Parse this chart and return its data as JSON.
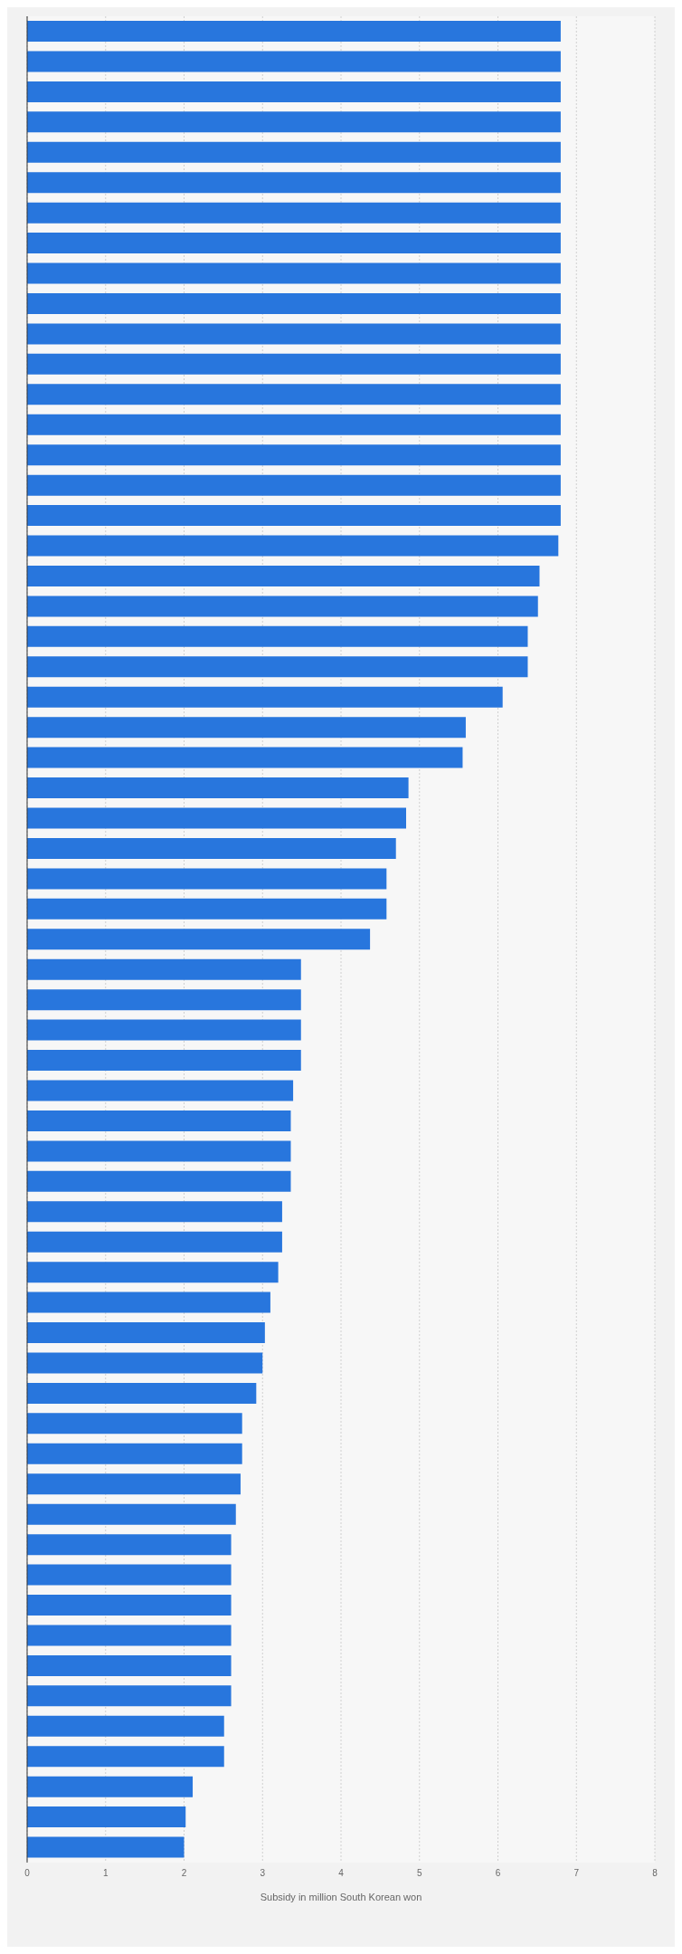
{
  "chart_data": {
    "type": "bar",
    "orientation": "horizontal",
    "xlabel": "Subsidy in million South Korean won",
    "categories": [
      null,
      null,
      null,
      null,
      null,
      null,
      null,
      null,
      null,
      null,
      null,
      null,
      null,
      null,
      null,
      null,
      null,
      null,
      null,
      null,
      null,
      null,
      null,
      null,
      null,
      null,
      null,
      null,
      null,
      null,
      null,
      null,
      null,
      null,
      null,
      null,
      null,
      null,
      null,
      null,
      null,
      null,
      null,
      null,
      null,
      null,
      null,
      null,
      null,
      null,
      null,
      null,
      null,
      null,
      null,
      null,
      null,
      null,
      null,
      null,
      null
    ],
    "values": [
      6.8,
      6.8,
      6.8,
      6.8,
      6.8,
      6.8,
      6.8,
      6.8,
      6.8,
      6.8,
      6.8,
      6.8,
      6.8,
      6.8,
      6.8,
      6.8,
      6.8,
      6.77,
      6.53,
      6.51,
      6.38,
      6.38,
      6.06,
      5.59,
      5.55,
      4.86,
      4.83,
      4.7,
      4.58,
      4.58,
      4.37,
      3.49,
      3.49,
      3.49,
      3.49,
      3.39,
      3.36,
      3.36,
      3.36,
      3.25,
      3.25,
      3.2,
      3.1,
      3.03,
      3.0,
      2.92,
      2.74,
      2.74,
      2.72,
      2.66,
      2.6,
      2.6,
      2.6,
      2.6,
      2.6,
      2.6,
      2.51,
      2.51,
      2.11,
      2.02,
      2.0
    ],
    "color": "#2876dd",
    "xlim": [
      0,
      8
    ],
    "xticks": [
      0,
      1,
      2,
      3,
      4,
      5,
      6,
      7,
      8
    ],
    "grid": "x"
  }
}
